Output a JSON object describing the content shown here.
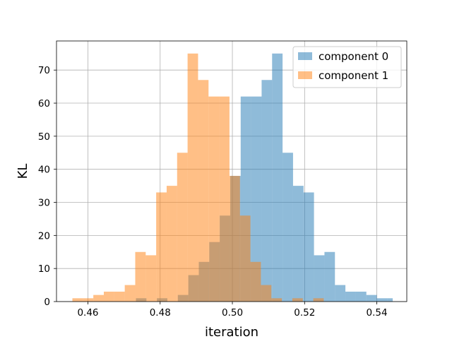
{
  "chart_data": {
    "type": "histogram",
    "xlabel": "iteration",
    "ylabel": "KL",
    "xlim": [
      0.4513,
      0.5483
    ],
    "ylim": [
      0,
      78.8
    ],
    "x_ticks": [
      0.46,
      0.48,
      0.5,
      0.52,
      0.54
    ],
    "x_tick_labels": [
      "0.46",
      "0.48",
      "0.50",
      "0.52",
      "0.54"
    ],
    "y_ticks": [
      0,
      10,
      20,
      30,
      40,
      50,
      60,
      70
    ],
    "y_tick_labels": [
      "0",
      "10",
      "20",
      "30",
      "40",
      "50",
      "60",
      "70"
    ],
    "grid": true,
    "legend_position": "top-right",
    "series": [
      {
        "name": "component 0",
        "color": "#1f77b4",
        "opacity": 0.5,
        "bins": [
          {
            "x0": 0.4733,
            "x1": 0.4762,
            "count": 1
          },
          {
            "x0": 0.4791,
            "x1": 0.482,
            "count": 1
          },
          {
            "x0": 0.4849,
            "x1": 0.4878,
            "count": 2
          },
          {
            "x0": 0.4878,
            "x1": 0.4907,
            "count": 8
          },
          {
            "x0": 0.4907,
            "x1": 0.4936,
            "count": 12
          },
          {
            "x0": 0.4936,
            "x1": 0.4965,
            "count": 18
          },
          {
            "x0": 0.4965,
            "x1": 0.4994,
            "count": 26
          },
          {
            "x0": 0.4994,
            "x1": 0.5023,
            "count": 38
          },
          {
            "x0": 0.5023,
            "x1": 0.5052,
            "count": 62
          },
          {
            "x0": 0.5052,
            "x1": 0.5081,
            "count": 62
          },
          {
            "x0": 0.5081,
            "x1": 0.511,
            "count": 67
          },
          {
            "x0": 0.511,
            "x1": 0.5139,
            "count": 75
          },
          {
            "x0": 0.5139,
            "x1": 0.5168,
            "count": 45
          },
          {
            "x0": 0.5168,
            "x1": 0.5197,
            "count": 35
          },
          {
            "x0": 0.5197,
            "x1": 0.5226,
            "count": 33
          },
          {
            "x0": 0.5226,
            "x1": 0.5255,
            "count": 14
          },
          {
            "x0": 0.5255,
            "x1": 0.5284,
            "count": 15
          },
          {
            "x0": 0.5284,
            "x1": 0.5313,
            "count": 5
          },
          {
            "x0": 0.5313,
            "x1": 0.5342,
            "count": 3
          },
          {
            "x0": 0.5342,
            "x1": 0.5371,
            "count": 3
          },
          {
            "x0": 0.5371,
            "x1": 0.54,
            "count": 2
          },
          {
            "x0": 0.54,
            "x1": 0.5429,
            "count": 1
          },
          {
            "x0": 0.5429,
            "x1": 0.5444,
            "count": 1
          }
        ]
      },
      {
        "name": "component 1",
        "color": "#ff7f0e",
        "opacity": 0.5,
        "bins": [
          {
            "x0": 0.4557,
            "x1": 0.4586,
            "count": 1
          },
          {
            "x0": 0.4586,
            "x1": 0.4615,
            "count": 1
          },
          {
            "x0": 0.4615,
            "x1": 0.4644,
            "count": 2
          },
          {
            "x0": 0.4644,
            "x1": 0.4673,
            "count": 3
          },
          {
            "x0": 0.4673,
            "x1": 0.4702,
            "count": 3
          },
          {
            "x0": 0.4702,
            "x1": 0.4731,
            "count": 5
          },
          {
            "x0": 0.4731,
            "x1": 0.476,
            "count": 15
          },
          {
            "x0": 0.476,
            "x1": 0.4789,
            "count": 14
          },
          {
            "x0": 0.4789,
            "x1": 0.4818,
            "count": 33
          },
          {
            "x0": 0.4818,
            "x1": 0.4847,
            "count": 35
          },
          {
            "x0": 0.4847,
            "x1": 0.4876,
            "count": 45
          },
          {
            "x0": 0.4876,
            "x1": 0.4905,
            "count": 75
          },
          {
            "x0": 0.4905,
            "x1": 0.4934,
            "count": 67
          },
          {
            "x0": 0.4934,
            "x1": 0.4963,
            "count": 62
          },
          {
            "x0": 0.4963,
            "x1": 0.4992,
            "count": 62
          },
          {
            "x0": 0.4992,
            "x1": 0.5021,
            "count": 38
          },
          {
            "x0": 0.5021,
            "x1": 0.505,
            "count": 26
          },
          {
            "x0": 0.505,
            "x1": 0.5079,
            "count": 12
          },
          {
            "x0": 0.5079,
            "x1": 0.5108,
            "count": 5
          },
          {
            "x0": 0.5108,
            "x1": 0.5137,
            "count": 1
          },
          {
            "x0": 0.5166,
            "x1": 0.5195,
            "count": 1
          },
          {
            "x0": 0.5224,
            "x1": 0.5253,
            "count": 1
          }
        ]
      }
    ]
  }
}
